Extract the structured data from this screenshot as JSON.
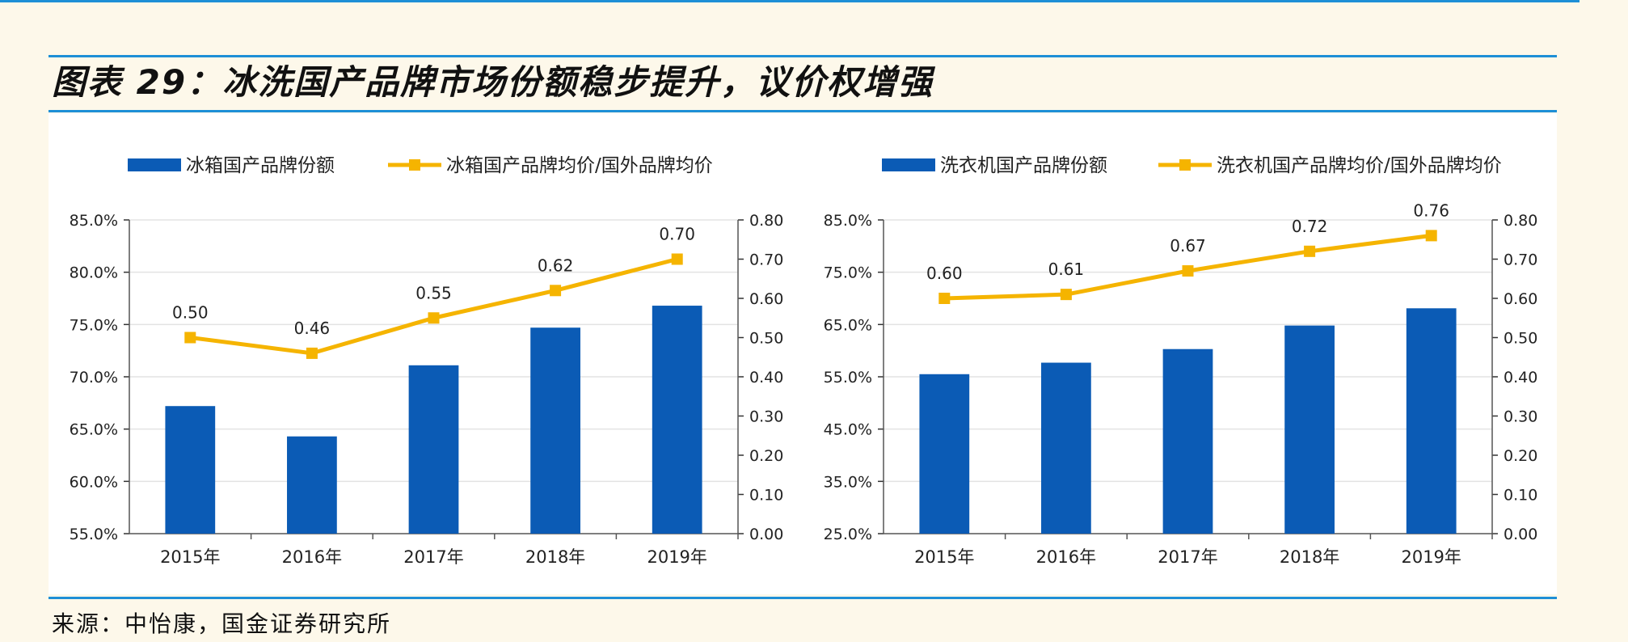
{
  "figure": {
    "title": "图表 29：冰洗国产品牌市场份额稳步提升，议价权增强",
    "source": "来源：中怡康，国金证券研究所"
  },
  "colors": {
    "bar": "#0b5bb5",
    "line": "#f5b400",
    "rule": "#1e8fd6"
  },
  "chart_data": [
    {
      "type": "bar+line",
      "categories": [
        "2015年",
        "2016年",
        "2017年",
        "2018年",
        "2019年"
      ],
      "series": [
        {
          "name": "冰箱国产品牌份额",
          "type": "bar",
          "axis": "left",
          "values": [
            67.2,
            64.3,
            71.1,
            74.7,
            76.8
          ]
        },
        {
          "name": "冰箱国产品牌均价/国外品牌均价",
          "type": "line",
          "axis": "right",
          "values": [
            0.5,
            0.46,
            0.55,
            0.62,
            0.7
          ],
          "labels": [
            "0.50",
            "0.46",
            "0.55",
            "0.62",
            "0.70"
          ]
        }
      ],
      "ylim_left": [
        55,
        85
      ],
      "yticks_left": [
        "55.0%",
        "60.0%",
        "65.0%",
        "70.0%",
        "75.0%",
        "80.0%",
        "85.0%"
      ],
      "ylim_right": [
        0,
        0.8
      ],
      "yticks_right": [
        "0.00",
        "0.10",
        "0.20",
        "0.30",
        "0.40",
        "0.50",
        "0.60",
        "0.70",
        "0.80"
      ],
      "grid": true,
      "legend": "top"
    },
    {
      "type": "bar+line",
      "categories": [
        "2015年",
        "2016年",
        "2017年",
        "2018年",
        "2019年"
      ],
      "series": [
        {
          "name": "洗衣机国产品牌份额",
          "type": "bar",
          "axis": "left",
          "values": [
            55.5,
            57.7,
            60.3,
            64.8,
            68.1
          ]
        },
        {
          "name": "洗衣机国产品牌均价/国外品牌均价",
          "type": "line",
          "axis": "right",
          "values": [
            0.6,
            0.61,
            0.67,
            0.72,
            0.76
          ],
          "labels": [
            "0.60",
            "0.61",
            "0.67",
            "0.72",
            "0.76"
          ]
        }
      ],
      "ylim_left": [
        25,
        85
      ],
      "yticks_left": [
        "25.0%",
        "35.0%",
        "45.0%",
        "55.0%",
        "65.0%",
        "75.0%",
        "85.0%"
      ],
      "ylim_right": [
        0,
        0.8
      ],
      "yticks_right": [
        "0.00",
        "0.10",
        "0.20",
        "0.30",
        "0.40",
        "0.50",
        "0.60",
        "0.70",
        "0.80"
      ],
      "grid": true,
      "legend": "top"
    }
  ]
}
